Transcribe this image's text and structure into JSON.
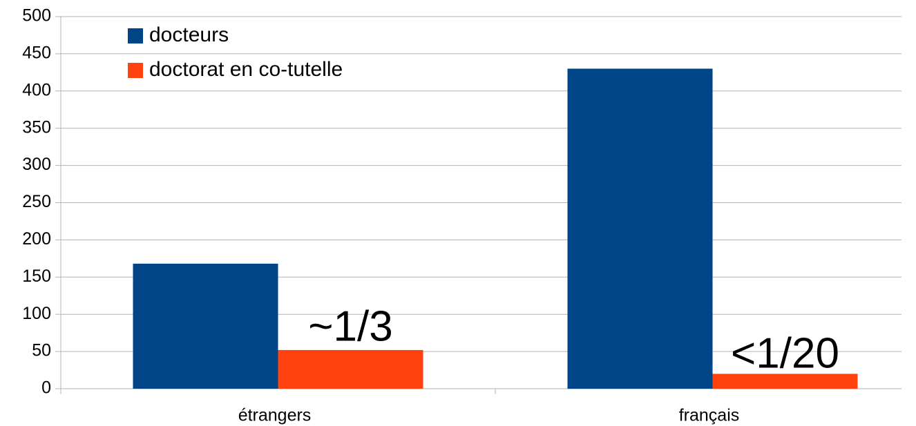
{
  "chart_data": {
    "type": "bar",
    "categories": [
      "étrangers",
      "français"
    ],
    "series": [
      {
        "name": "docteurs",
        "color": "#004586",
        "values": [
          168,
          430
        ]
      },
      {
        "name": "doctorat en co-tutelle",
        "color": "#ff420e",
        "values": [
          52,
          20
        ]
      }
    ],
    "annotations": [
      "~1/3",
      "<1/20"
    ],
    "ylim": [
      0,
      500
    ],
    "yticks": [
      0,
      50,
      100,
      150,
      200,
      250,
      300,
      350,
      400,
      450,
      500
    ],
    "grid": true,
    "legend": "top-left"
  }
}
